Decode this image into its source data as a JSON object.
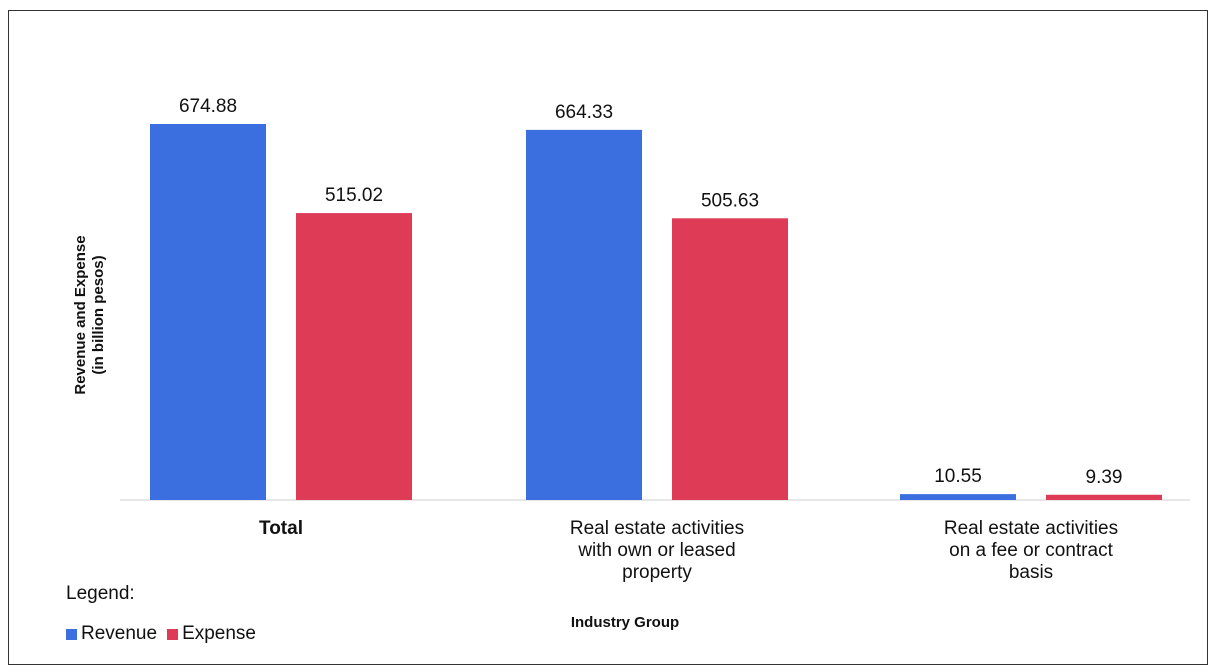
{
  "chart_data": {
    "type": "bar",
    "categories": [
      "Total",
      "Real estate activities with own or leased property",
      "Real estate activities on a fee or contract basis"
    ],
    "category_lines": [
      [
        "Total"
      ],
      [
        "Real estate activities",
        "with own or leased",
        "property"
      ],
      [
        "Real estate activities",
        "on a fee or contract",
        "basis"
      ]
    ],
    "series": [
      {
        "name": "Revenue",
        "color": "#3b6fe0",
        "values": [
          674.88,
          664.33,
          10.55
        ]
      },
      {
        "name": "Expense",
        "color": "#de3b57",
        "values": [
          515.02,
          505.63,
          9.39
        ]
      }
    ],
    "ylabel": "Revenue and Expense\n(in billion pesos)",
    "xlabel": "Industry Group",
    "ylim": [
      0,
      674.88
    ],
    "grid": false,
    "legend": {
      "title": "Legend:",
      "placement": "bottom-left"
    }
  }
}
